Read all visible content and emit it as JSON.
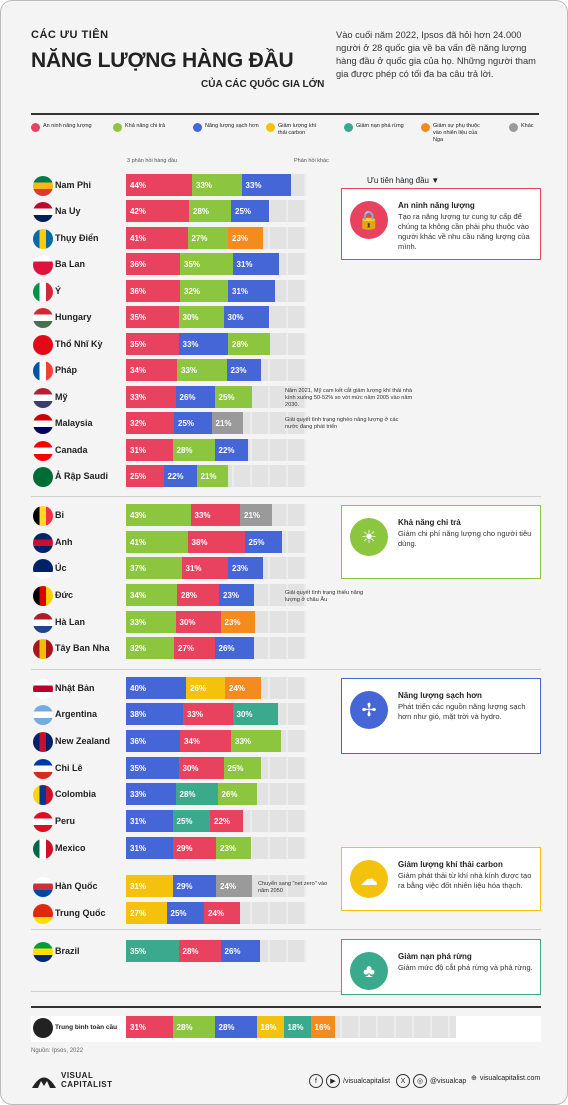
{
  "header": {
    "kicker": "CÁC ƯU TIÊN",
    "title": "NĂNG LƯỢNG HÀNG ĐẦU",
    "subtitle": "CỦA CÁC QUỐC GIA LỚN",
    "intro": "Vào cuối năm 2022, Ipsos đã hỏi hơn 24.000 người ở 28 quốc gia về ba vấn đề năng lượng hàng đầu ở quốc gia của họ. Những người tham gia được phép có tối đa ba câu trả lời."
  },
  "legend": [
    {
      "key": "security",
      "label": "An ninh năng lượng",
      "color": "#e8425f"
    },
    {
      "key": "afford",
      "label": "Khả năng chi trả",
      "color": "#8cc63f"
    },
    {
      "key": "clean",
      "label": "Năng lượng sạch hơn",
      "color": "#4566d6"
    },
    {
      "key": "carbon",
      "label": "Giảm lượng khí thải carbon",
      "color": "#f4c20d"
    },
    {
      "key": "deforest",
      "label": "Giảm nạn phá rừng",
      "color": "#3aa98c"
    },
    {
      "key": "russia",
      "label": "Giảm sự phụ thuộc vào nhiên liệu của Nga",
      "color": "#f58a1f"
    },
    {
      "key": "other",
      "label": "Khác",
      "color": "#9a9a9a"
    }
  ],
  "notes": {
    "top3": "3 phản hồi hàng đầu",
    "others": "Phản hồi khác",
    "top_priority": "Ưu tiên hàng đầu ▼"
  },
  "chart_data": {
    "type": "bar",
    "stacked": true,
    "unit": "%",
    "rows": [
      {
        "country": "Nam Phi",
        "values": [
          [
            "security",
            44
          ],
          [
            "afford",
            33
          ],
          [
            "clean",
            33
          ]
        ]
      },
      {
        "country": "Na Uy",
        "values": [
          [
            "security",
            42
          ],
          [
            "afford",
            28
          ],
          [
            "clean",
            25
          ]
        ]
      },
      {
        "country": "Thụy Điển",
        "values": [
          [
            "security",
            41
          ],
          [
            "afford",
            27
          ],
          [
            "russia",
            23
          ]
        ]
      },
      {
        "country": "Ba Lan",
        "values": [
          [
            "security",
            36
          ],
          [
            "afford",
            35
          ],
          [
            "clean",
            31
          ]
        ]
      },
      {
        "country": "Ý",
        "values": [
          [
            "security",
            36
          ],
          [
            "afford",
            32
          ],
          [
            "clean",
            31
          ]
        ]
      },
      {
        "country": "Hungary",
        "values": [
          [
            "security",
            35
          ],
          [
            "afford",
            30
          ],
          [
            "clean",
            30
          ]
        ]
      },
      {
        "country": "Thổ Nhĩ Kỳ",
        "values": [
          [
            "security",
            35
          ],
          [
            "clean",
            33
          ],
          [
            "afford",
            28
          ]
        ]
      },
      {
        "country": "Pháp",
        "values": [
          [
            "security",
            34
          ],
          [
            "afford",
            33
          ],
          [
            "clean",
            23
          ]
        ]
      },
      {
        "country": "Mỹ",
        "values": [
          [
            "security",
            33
          ],
          [
            "clean",
            26
          ],
          [
            "afford",
            25
          ]
        ]
      },
      {
        "country": "Malaysia",
        "values": [
          [
            "security",
            32
          ],
          [
            "clean",
            25
          ],
          [
            "other",
            21
          ]
        ]
      },
      {
        "country": "Canada",
        "values": [
          [
            "security",
            31
          ],
          [
            "afford",
            28
          ],
          [
            "clean",
            22
          ]
        ]
      },
      {
        "country": "Ả Rập Saudi",
        "values": [
          [
            "security",
            25
          ],
          [
            "clean",
            22
          ],
          [
            "afford",
            21
          ]
        ]
      },
      {
        "country": "Bỉ",
        "values": [
          [
            "afford",
            43
          ],
          [
            "security",
            33
          ],
          [
            "other",
            21
          ]
        ]
      },
      {
        "country": "Anh",
        "values": [
          [
            "afford",
            41
          ],
          [
            "security",
            38
          ],
          [
            "clean",
            25
          ]
        ]
      },
      {
        "country": "Úc",
        "values": [
          [
            "afford",
            37
          ],
          [
            "security",
            31
          ],
          [
            "clean",
            23
          ]
        ]
      },
      {
        "country": "Đức",
        "values": [
          [
            "afford",
            34
          ],
          [
            "security",
            28
          ],
          [
            "clean",
            23
          ]
        ]
      },
      {
        "country": "Hà Lan",
        "values": [
          [
            "afford",
            33
          ],
          [
            "security",
            30
          ],
          [
            "russia",
            23
          ]
        ]
      },
      {
        "country": "Tây Ban Nha",
        "values": [
          [
            "afford",
            32
          ],
          [
            "security",
            27
          ],
          [
            "clean",
            26
          ]
        ]
      },
      {
        "country": "Nhật Bản",
        "values": [
          [
            "clean",
            40
          ],
          [
            "carbon",
            26
          ],
          [
            "russia",
            24
          ]
        ]
      },
      {
        "country": "Argentina",
        "values": [
          [
            "clean",
            38
          ],
          [
            "security",
            33
          ],
          [
            "deforest",
            30
          ]
        ]
      },
      {
        "country": "New Zealand",
        "values": [
          [
            "clean",
            36
          ],
          [
            "security",
            34
          ],
          [
            "afford",
            33
          ]
        ]
      },
      {
        "country": "Chi Lê",
        "values": [
          [
            "clean",
            35
          ],
          [
            "security",
            30
          ],
          [
            "afford",
            25
          ]
        ]
      },
      {
        "country": "Colombia",
        "values": [
          [
            "clean",
            33
          ],
          [
            "deforest",
            28
          ],
          [
            "afford",
            26
          ]
        ]
      },
      {
        "country": "Peru",
        "values": [
          [
            "clean",
            31
          ],
          [
            "deforest",
            25
          ],
          [
            "security",
            22
          ]
        ]
      },
      {
        "country": "Mexico",
        "values": [
          [
            "clean",
            31
          ],
          [
            "security",
            29
          ],
          [
            "afford",
            23
          ]
        ]
      },
      {
        "country": "Hàn Quốc",
        "values": [
          [
            "carbon",
            31
          ],
          [
            "clean",
            29
          ],
          [
            "other",
            24
          ]
        ]
      },
      {
        "country": "Trung Quốc",
        "values": [
          [
            "carbon",
            27
          ],
          [
            "clean",
            25
          ],
          [
            "security",
            24
          ]
        ]
      },
      {
        "country": "Brazil",
        "values": [
          [
            "deforest",
            35
          ],
          [
            "security",
            28
          ],
          [
            "clean",
            26
          ]
        ]
      }
    ],
    "global": {
      "country": "Trung bình toàn cầu",
      "values": [
        [
          "security",
          31
        ],
        [
          "afford",
          28
        ],
        [
          "clean",
          28
        ],
        [
          "carbon",
          18
        ],
        [
          "deforest",
          18
        ],
        [
          "russia",
          16
        ]
      ]
    }
  },
  "annotations": {
    "us": "Năm 2021, Mỹ cam kết cắt giảm lượng khí thải nhà kính xuống 50-52% so với mức năm 2005 vào năm 2030.",
    "malaysia": "Giải quyết tình trạng nghèo năng lượng ở các nước đang phát triển",
    "europe": "Giải quyết tình trạng thiếu năng lượng ở châu Âu",
    "korea": "Chuyển sang \"net zero\" vào năm 2050"
  },
  "infoboxes": [
    {
      "title": "An ninh năng lượng",
      "desc": "Tạo ra năng lượng tự cung tự cấp để chúng ta không cần phải phụ thuộc vào người khác về nhu cầu năng lượng của mình.",
      "icon": "lock-icon",
      "color": "#e8425f"
    },
    {
      "title": "Khả năng chi trả",
      "desc": "Giảm chi phí năng lượng cho người tiêu dùng.",
      "icon": "lightbulb-icon",
      "color": "#8cc63f"
    },
    {
      "title": "Năng lượng sạch hơn",
      "desc": "Phát triển các nguồn năng lượng sạch hơn như gió, mặt trời và hydro.",
      "icon": "wind-turbine-icon",
      "color": "#4566d6"
    },
    {
      "title": "Giảm lượng khí thải carbon",
      "desc": "Giảm phát thải từ khí nhà kính được tạo ra bằng việc đốt nhiên liệu hóa thạch.",
      "icon": "cloud-icon",
      "color": "#f4c20d"
    },
    {
      "title": "Giảm nạn phá rừng",
      "desc": "Giảm mức độ cắt phá rừng và phá rừng.",
      "icon": "tree-icon",
      "color": "#3aa98c"
    }
  ],
  "footer": {
    "source": "Nguồn: Ipsos, 2022",
    "brand_line1": "VISUAL",
    "brand_line2": "CAPITALIST",
    "social1": "/visualcapitalist",
    "social2": "@visualcap",
    "site": "visualcapitalist.com"
  }
}
